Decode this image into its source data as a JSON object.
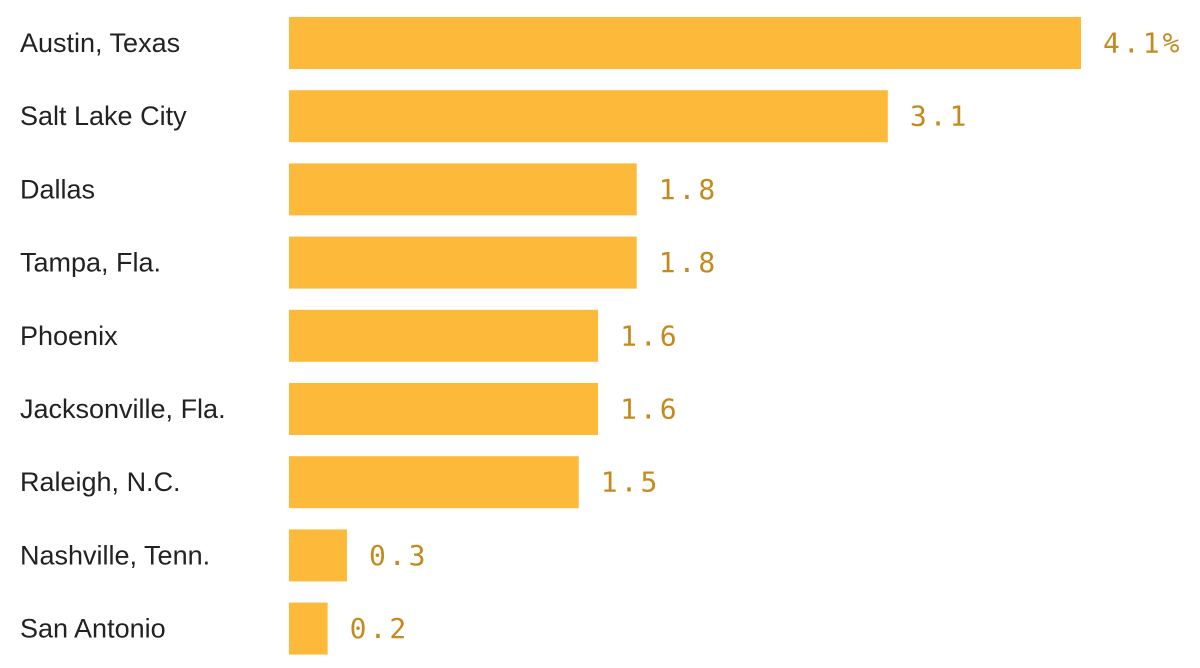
{
  "chart_data": {
    "type": "bar",
    "orientation": "horizontal",
    "categories": [
      "Austin, Texas",
      "Salt Lake City",
      "Dallas",
      "Tampa, Fla.",
      "Phoenix",
      "Jacksonville, Fla.",
      "Raleigh, N.C.",
      "Nashville, Tenn.",
      "San Antonio"
    ],
    "values": [
      4.1,
      3.1,
      1.8,
      1.8,
      1.6,
      1.6,
      1.5,
      0.3,
      0.2
    ],
    "value_labels": [
      "4.1%",
      "3.1",
      "1.8",
      "1.8",
      "1.6",
      "1.6",
      "1.5",
      "0.3",
      "0.2"
    ],
    "xlim": [
      0,
      4.1
    ],
    "grid": false,
    "bar_color": "#FDBA3A",
    "value_label_color": "#C58A1E"
  }
}
